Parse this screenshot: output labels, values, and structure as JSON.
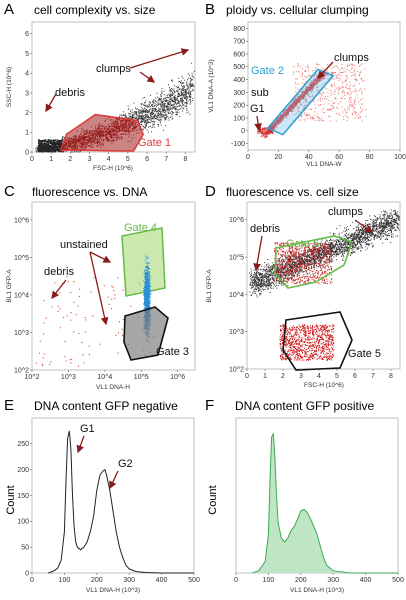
{
  "figure": "Flow cytometry gating panels",
  "colors": {
    "cells": "#333333",
    "gated": "#cc2222",
    "gate1": "#e03a3a",
    "gate2": "#2a9fd6",
    "gate4": "#66bb44",
    "gate4_fill": "#c8e6a0",
    "gate3_fill": "#999999",
    "gfp_blue": "#2a8fd6",
    "hist_line_neg": "#222222",
    "hist_line_pos": "#3aaa55",
    "hist_fill_pos": "#bfe6c4",
    "arrow": "#8b1a1a"
  },
  "panels": [
    {
      "letter": "A",
      "title": "cell complexity vs. size",
      "xlabel": "FSC-H (10^6)",
      "ylabel": "SSC-H (10^6)",
      "xticks": [
        "0",
        "1",
        "2",
        "3",
        "4",
        "5",
        "6",
        "7",
        "8"
      ],
      "yticks": [
        "0",
        "1",
        "2",
        "3",
        "4",
        "5",
        "6"
      ],
      "annotations": [
        "clumps",
        "debris"
      ],
      "gate": "Gate 1"
    },
    {
      "letter": "B",
      "title": "ploidy vs. cellular clumping",
      "xlabel": "VL1 DNA-W",
      "ylabel": "VL1 DNA-A (10^3)",
      "xticks": [
        "0",
        "20",
        "40",
        "60",
        "80",
        "100"
      ],
      "yticks": [
        "-100",
        "0",
        "100",
        "200",
        "300",
        "400",
        "500",
        "600",
        "700",
        "800"
      ],
      "annotations": [
        "clumps",
        "sub",
        "G1"
      ],
      "gate": "Gate 2"
    },
    {
      "letter": "C",
      "title": "fluorescence vs. DNA",
      "xlabel": "VL1 DNA-H",
      "ylabel": "BL1 GFP-A",
      "xticks": [
        "10^2",
        "10^3",
        "10^4",
        "10^5",
        "10^6"
      ],
      "yticks": [
        "10^2",
        "10^3",
        "10^4",
        "10^5",
        "10^6"
      ],
      "annotations": [
        "unstained",
        "debris"
      ],
      "gates": [
        "Gate 4",
        "Gate 3"
      ]
    },
    {
      "letter": "D",
      "title": "fluorescence vs. cell size",
      "xlabel": "FSC-H (10^6)",
      "ylabel": "BL1 GFP-A",
      "xticks": [
        "0",
        "1",
        "2",
        "3",
        "4",
        "5",
        "6",
        "7",
        "8"
      ],
      "yticks": [
        "10^2",
        "10^3",
        "10^4",
        "10^5",
        "10^6"
      ],
      "annotations": [
        "clumps",
        "debris"
      ],
      "gates": [
        "Gate 6",
        "Gate 5"
      ]
    },
    {
      "letter": "E",
      "title": "DNA content GFP negative",
      "xlabel": "VL1 DNA-H (10^3)",
      "ylabel": "Count",
      "xticks": [
        "0",
        "100",
        "200",
        "300",
        "400",
        "500"
      ],
      "yticks": [
        "0",
        "50",
        "100",
        "150",
        "200",
        "250"
      ],
      "annotations": [
        "G1",
        "G2"
      ]
    },
    {
      "letter": "F",
      "title": "DNA content GFP positive",
      "xlabel": "VL1 DNA-H (10^3)",
      "ylabel": "Count",
      "xticks": [
        "0",
        "100",
        "200",
        "300",
        "400",
        "500"
      ],
      "yticks": [],
      "annotations": []
    }
  ],
  "chart_data": [
    {
      "type": "scatter",
      "title": "cell complexity vs. size",
      "xlabel": "FSC-H (10^6)",
      "ylabel": "SSC-H (10^6)",
      "xlim": [
        0,
        8.5
      ],
      "ylim": [
        0,
        6.6
      ],
      "gates": [
        {
          "name": "Gate 1",
          "color": "#e03a3a",
          "polygon": [
            [
              1.5,
              0.1
            ],
            [
              1.8,
              0.9
            ],
            [
              3.3,
              1.9
            ],
            [
              5.5,
              1.6
            ],
            [
              5.8,
              0.9
            ],
            [
              5.3,
              0.05
            ]
          ]
        }
      ],
      "annotations": [
        {
          "text": "clumps",
          "x": 4.9,
          "y": 4.3
        },
        {
          "text": "debris",
          "x": 0.8,
          "y": 2.4
        }
      ]
    },
    {
      "type": "scatter",
      "title": "ploidy vs. cellular clumping",
      "xlabel": "VL1 DNA-W",
      "ylabel": "VL1 DNA-A (10^3)",
      "xlim": [
        0,
        100
      ],
      "ylim": [
        -150,
        850
      ],
      "gates": [
        {
          "name": "Gate 2",
          "color": "#2a9fd6",
          "polygon": [
            [
              13,
              20
            ],
            [
              46,
              480
            ],
            [
              56,
              430
            ],
            [
              23,
              -30
            ]
          ]
        }
      ],
      "annotations": [
        {
          "text": "clumps",
          "x": 66,
          "y": 480
        },
        {
          "text": "sub",
          "x": 13,
          "y": 240
        },
        {
          "text": "G1",
          "x": 7,
          "y": 140
        }
      ]
    },
    {
      "type": "scatter",
      "title": "fluorescence vs. DNA",
      "xlabel": "VL1 DNA-H",
      "ylabel": "BL1 GFP-A",
      "xlim": [
        100,
        3000000
      ],
      "ylim": [
        100,
        3000000
      ],
      "xscale": "log",
      "yscale": "log",
      "gates": [
        {
          "name": "Gate 4",
          "color": "#66bb44"
        },
        {
          "name": "Gate 3",
          "color": "#222222"
        }
      ],
      "annotations": [
        {
          "text": "unstained",
          "x": 1500,
          "y": 300000
        },
        {
          "text": "debris",
          "x": 300,
          "y": 30000
        }
      ]
    },
    {
      "type": "scatter",
      "title": "fluorescence vs. cell size",
      "xlabel": "FSC-H (10^6)",
      "ylabel": "BL1 GFP-A",
      "xlim": [
        0,
        8.5
      ],
      "ylim": [
        100,
        3000000
      ],
      "yscale": "log",
      "gates": [
        {
          "name": "Gate 6",
          "color": "#66bb44"
        },
        {
          "name": "Gate 5",
          "color": "#222222"
        }
      ],
      "annotations": [
        {
          "text": "clumps",
          "x": 5.2,
          "y": 1500000
        },
        {
          "text": "debris",
          "x": 1.0,
          "y": 200000
        }
      ]
    },
    {
      "type": "line",
      "title": "DNA content GFP negative",
      "xlabel": "VL1 DNA-H (10^3)",
      "ylabel": "Count",
      "xlim": [
        0,
        500
      ],
      "ylim": [
        0,
        300
      ],
      "x": [
        50,
        60,
        70,
        80,
        90,
        100,
        105,
        110,
        115,
        120,
        125,
        130,
        135,
        140,
        150,
        160,
        170,
        180,
        190,
        200,
        210,
        220,
        225,
        230,
        240,
        250,
        260,
        270,
        280,
        290,
        300,
        320,
        350,
        400,
        450,
        500
      ],
      "values": [
        0,
        2,
        5,
        10,
        25,
        80,
        180,
        260,
        275,
        240,
        150,
        90,
        60,
        50,
        45,
        50,
        60,
        80,
        110,
        160,
        190,
        198,
        200,
        190,
        160,
        120,
        80,
        50,
        30,
        15,
        8,
        3,
        1,
        0,
        0,
        0
      ],
      "annotations": [
        {
          "text": "G1",
          "x": 112,
          "y": 265
        },
        {
          "text": "G2",
          "x": 232,
          "y": 200
        }
      ]
    },
    {
      "type": "area",
      "title": "DNA content GFP positive",
      "xlabel": "VL1 DNA-H (10^3)",
      "ylabel": "Count",
      "xlim": [
        0,
        500
      ],
      "ylim": [
        0,
        200
      ],
      "x": [
        50,
        70,
        90,
        100,
        105,
        110,
        115,
        120,
        125,
        130,
        140,
        150,
        160,
        170,
        180,
        190,
        200,
        210,
        220,
        230,
        240,
        250,
        260,
        270,
        280,
        300,
        350,
        400,
        500
      ],
      "values": [
        0,
        3,
        15,
        50,
        120,
        175,
        180,
        150,
        100,
        65,
        45,
        40,
        45,
        55,
        60,
        70,
        80,
        82,
        78,
        70,
        60,
        50,
        35,
        20,
        10,
        3,
        0,
        0,
        0
      ]
    }
  ]
}
